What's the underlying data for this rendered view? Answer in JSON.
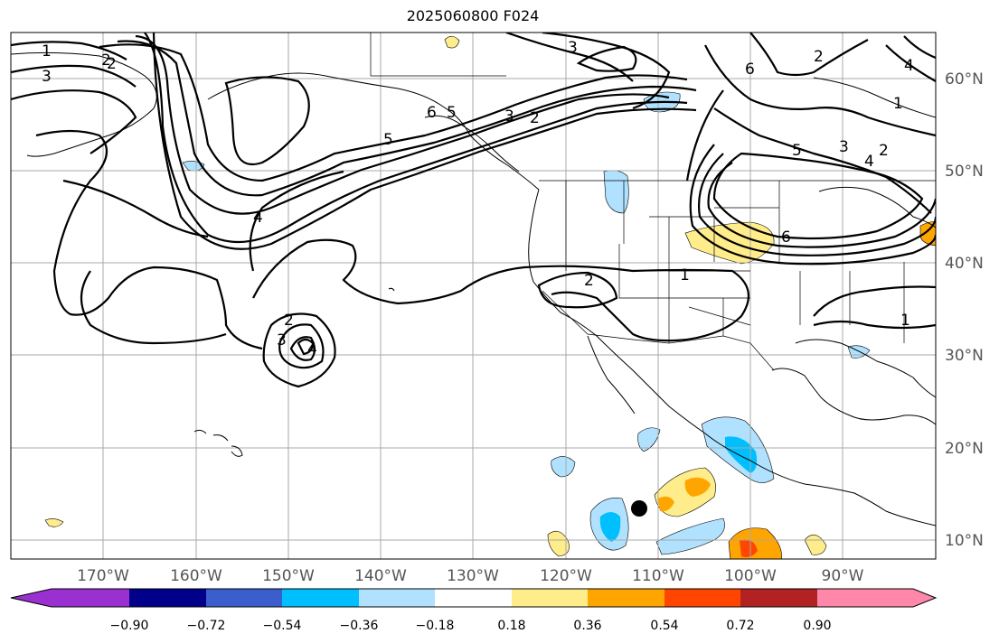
{
  "title": "2025060800 F024",
  "lat_labels": [
    "60°N",
    "50°N",
    "40°N",
    "30°N",
    "20°N",
    "10°N"
  ],
  "lon_labels": [
    "170°W",
    "160°W",
    "150°W",
    "140°W",
    "130°W",
    "120°W",
    "110°W",
    "100°W",
    "90°W"
  ],
  "contour_labels": [
    "1",
    "3",
    "2",
    "3",
    "3",
    "2",
    "5",
    "4",
    "6",
    "1",
    "3",
    "2",
    "4",
    "6",
    "5",
    "2",
    "1",
    "4",
    "2",
    "3",
    "2",
    "4",
    "1",
    "2",
    "6",
    "5"
  ],
  "colorbar": {
    "tick_labels": [
      "−0.90",
      "−0.72",
      "−0.54",
      "−0.36",
      "−0.18",
      "0.18",
      "0.36",
      "0.54",
      "0.72",
      "0.90"
    ],
    "colors": [
      "#9b30d0",
      "#00008b",
      "#3a5fcd",
      "#00bfff",
      "#b0e2ff",
      "#ffffff",
      "#ffec8b",
      "#ffa500",
      "#ff4500",
      "#b22222",
      "#ff88aa"
    ]
  }
}
